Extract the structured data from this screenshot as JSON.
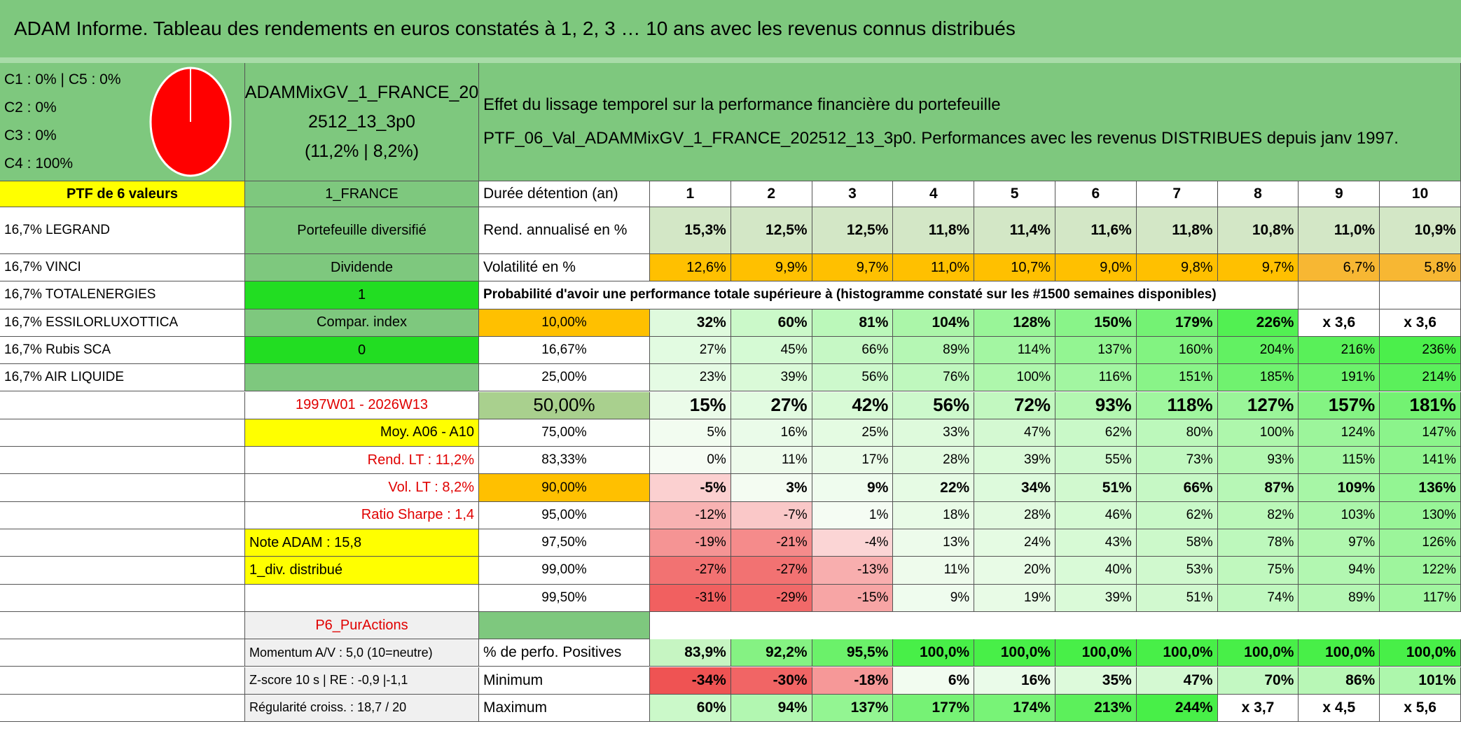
{
  "title": "ADAM Informe. Tableau des rendements en euros constatés à 1, 2, 3 … 10 ans avec les revenus connus distribués",
  "header": {
    "allocation": [
      "C1 : 0% | C5 : 0%",
      "C2 : 0%",
      "C3 : 0%",
      "C4 : 100%"
    ],
    "portfolio": [
      "ADAMMixGV_1_FRANCE_20",
      "2512_13_3p0",
      "(11,2% | 8,2%)"
    ],
    "description": [
      "Effet du lissage temporel sur la performance financière du portefeuille",
      "PTF_06_Val_ADAMMixGV_1_FRANCE_202512_13_3p0. Performances avec les revenus DISTRIBUES depuis janv 1997."
    ]
  },
  "left": {
    "heading": "PTF de 6 valeurs",
    "holdings": [
      "16,7% LEGRAND",
      "16,7% VINCI",
      "16,7% TOTALENERGIES",
      "16,7% ESSILORLUXOTTICA",
      "16,7% Rubis SCA",
      "16,7% AIR LIQUIDE"
    ]
  },
  "profile": {
    "market": "1_FRANCE",
    "type": "Portefeuille diversifié",
    "income": "Dividende",
    "income_flag": "1",
    "compare": "Compar. index",
    "compare_flag": "0",
    "period": "1997W01 - 2026W13",
    "average": "Moy. A06 - A10",
    "long_term_return": "Rend. LT : 11,2%",
    "long_term_volatility": "Vol. LT : 8,2%",
    "sharpe": "Ratio Sharpe : 1,4",
    "adam_score": "Note ADAM : 15,8",
    "dividend": "1_div. distribué",
    "category": "P6_PurActions",
    "momentum": "Momentum A/V : 5,0 (10=neutre)",
    "zscore": "Z-score 10 s | RE : -0,9 |-1,1",
    "regularity": "Régularité croiss. : 18,7 / 20"
  },
  "table": {
    "horizon_label": "Durée détention (an)",
    "horizons": [
      1,
      2,
      3,
      4,
      5,
      6,
      7,
      8,
      9,
      10
    ],
    "return_row": {
      "label": "Rend. annualisé en %",
      "values": [
        "15,3%",
        "12,5%",
        "12,5%",
        "11,8%",
        "11,4%",
        "11,6%",
        "11,8%",
        "10,8%",
        "11,0%",
        "10,9%"
      ]
    },
    "volatility_row": {
      "label": "Volatilité en %",
      "values": [
        "12,6%",
        "9,9%",
        "9,7%",
        "11,0%",
        "10,7%",
        "9,0%",
        "9,8%",
        "9,7%",
        "6,7%",
        "5,8%"
      ]
    },
    "probability_title": "Probabilité d'avoir une performance totale supérieure à (histogramme constaté sur les #1500 semaines disponibles)",
    "probability_rows": [
      {
        "threshold": "10,00%",
        "values": [
          "32%",
          "60%",
          "81%",
          "104%",
          "128%",
          "150%",
          "179%",
          "226%",
          "x 3,6",
          "x 3,6"
        ]
      },
      {
        "threshold": "16,67%",
        "values": [
          "27%",
          "45%",
          "66%",
          "89%",
          "114%",
          "137%",
          "160%",
          "204%",
          "216%",
          "236%"
        ]
      },
      {
        "threshold": "25,00%",
        "values": [
          "23%",
          "39%",
          "56%",
          "76%",
          "100%",
          "116%",
          "151%",
          "185%",
          "191%",
          "214%"
        ]
      },
      {
        "threshold": "50,00%",
        "values": [
          "15%",
          "27%",
          "42%",
          "56%",
          "72%",
          "93%",
          "118%",
          "127%",
          "157%",
          "181%"
        ]
      },
      {
        "threshold": "75,00%",
        "values": [
          "5%",
          "16%",
          "25%",
          "33%",
          "47%",
          "62%",
          "80%",
          "100%",
          "124%",
          "147%"
        ]
      },
      {
        "threshold": "83,33%",
        "values": [
          "0%",
          "11%",
          "17%",
          "28%",
          "39%",
          "55%",
          "73%",
          "93%",
          "115%",
          "141%"
        ]
      },
      {
        "threshold": "90,00%",
        "values": [
          "-5%",
          "3%",
          "9%",
          "22%",
          "34%",
          "51%",
          "66%",
          "87%",
          "109%",
          "136%"
        ]
      },
      {
        "threshold": "95,00%",
        "values": [
          "-12%",
          "-7%",
          "1%",
          "18%",
          "28%",
          "46%",
          "62%",
          "82%",
          "103%",
          "130%"
        ]
      },
      {
        "threshold": "97,50%",
        "values": [
          "-19%",
          "-21%",
          "-4%",
          "13%",
          "24%",
          "43%",
          "58%",
          "78%",
          "97%",
          "126%"
        ]
      },
      {
        "threshold": "99,00%",
        "values": [
          "-27%",
          "-27%",
          "-13%",
          "11%",
          "20%",
          "40%",
          "53%",
          "75%",
          "94%",
          "122%"
        ]
      },
      {
        "threshold": "99,50%",
        "values": [
          "-31%",
          "-29%",
          "-15%",
          "9%",
          "19%",
          "39%",
          "51%",
          "74%",
          "89%",
          "117%"
        ]
      }
    ],
    "stats_rows": [
      {
        "label": "% de perfo. Positives",
        "values": [
          "83,9%",
          "92,2%",
          "95,5%",
          "100,0%",
          "100,0%",
          "100,0%",
          "100,0%",
          "100,0%",
          "100,0%",
          "100,0%"
        ]
      },
      {
        "label": "Minimum",
        "values": [
          "-34%",
          "-30%",
          "-18%",
          "6%",
          "16%",
          "35%",
          "47%",
          "70%",
          "86%",
          "101%"
        ]
      },
      {
        "label": "Maximum",
        "values": [
          "60%",
          "94%",
          "137%",
          "177%",
          "174%",
          "213%",
          "244%",
          "x 3,7",
          "x 4,5",
          "x 5,6"
        ]
      }
    ]
  }
}
